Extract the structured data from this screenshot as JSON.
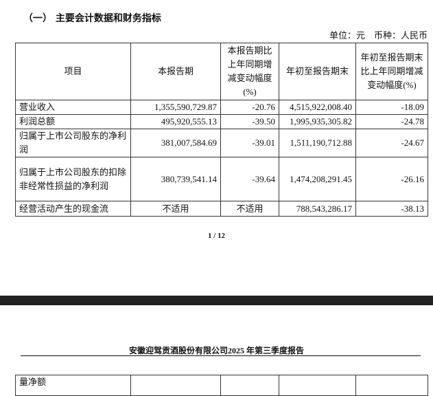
{
  "section_title": "（一） 主要会计数据和财务指标",
  "unit_note": "单位：元　币种：人民币",
  "headers": [
    "项目",
    "本报告期",
    "本报告期比上年同期增减变动幅度(%)",
    "年初至报告期末",
    "年初至报告期末比上年同期增减变动幅度(%)"
  ],
  "rows": [
    [
      "营业收入",
      "1,355,590,729.87",
      "-20.76",
      "4,515,922,008.40",
      "-18.09"
    ],
    [
      "利润总额",
      "495,920,555.13",
      "-39.50",
      "1,995,935,305.82",
      "-24.78"
    ],
    [
      "归属于上市公司股东的净利润",
      "381,007,584.69",
      "-39.01",
      "1,511,190,712.88",
      "-24.67"
    ],
    [
      "归属于上市公司股东的扣除非经常性损益的净利润",
      "380,739,541.14",
      "-39.64",
      "1,474,208,291.45",
      "-26.16"
    ],
    [
      "经营活动产生的现金流",
      "不适用",
      "不适用",
      "788,543,286.17",
      "-38.13"
    ]
  ],
  "page_number": "1 / 12",
  "report_header": "安徽迎驾贡酒股份有限公司2025 年第三季度报告",
  "continued_row_label": "量净额"
}
